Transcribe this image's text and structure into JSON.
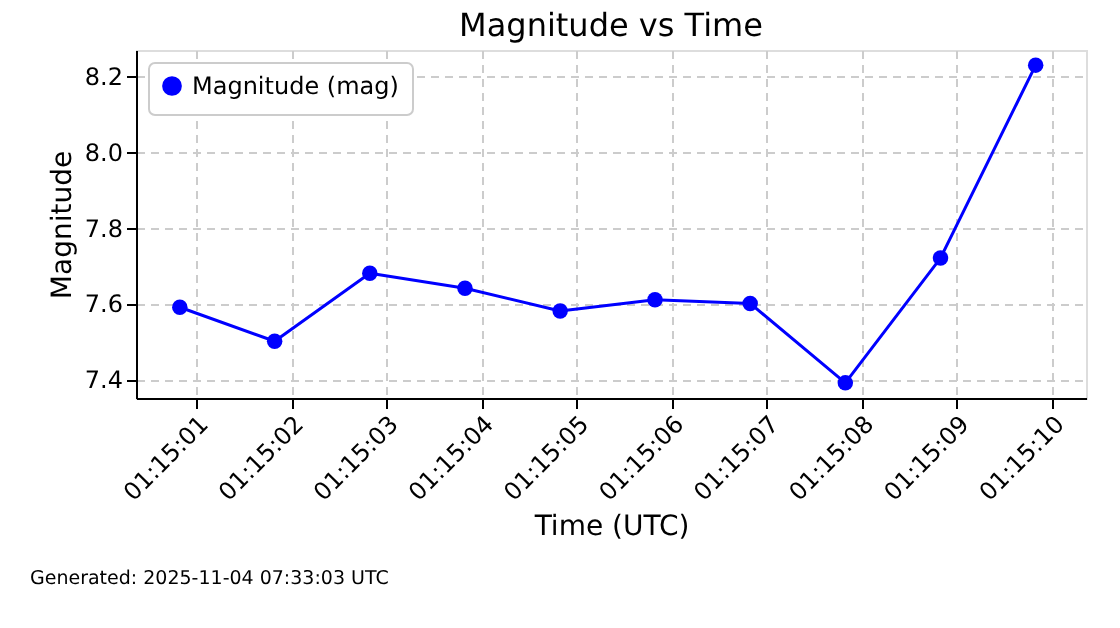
{
  "chart_data": {
    "type": "line",
    "title": "Magnitude vs Time",
    "xlabel": "Time (UTC)",
    "ylabel": "Magnitude",
    "annotations": [
      "Generated: 2025-11-04 07:33:03 UTC"
    ],
    "x": [
      1.250231,
      1.250508,
      1.250786,
      1.251064,
      1.251342,
      1.251619,
      1.251897,
      1.252175,
      1.252453,
      1.252731
    ],
    "series": [
      {
        "name": "Magnitude (mag)",
        "color": "#0000ff",
        "values": [
          7.59,
          7.5,
          7.68,
          7.64,
          7.58,
          7.61,
          7.6,
          7.39,
          7.72,
          8.23
        ]
      }
    ],
    "xlim": [
      1.250103,
      1.252878
    ],
    "xticks": [
      {
        "value": 1.250278,
        "label": "01:15:01"
      },
      {
        "value": 1.250556,
        "label": "01:15:02"
      },
      {
        "value": 1.250833,
        "label": "01:15:03"
      },
      {
        "value": 1.251111,
        "label": "01:15:04"
      },
      {
        "value": 1.251389,
        "label": "01:15:05"
      },
      {
        "value": 1.251667,
        "label": "01:15:06"
      },
      {
        "value": 1.251944,
        "label": "01:15:07"
      },
      {
        "value": 1.252222,
        "label": "01:15:08"
      },
      {
        "value": 1.2525,
        "label": "01:15:09"
      },
      {
        "value": 1.252778,
        "label": "01:15:10"
      }
    ],
    "ylim": [
      7.35,
      8.27
    ],
    "yticks": [
      7.4,
      7.6,
      7.8,
      {
        "value": 8.0,
        "label": "8.0"
      },
      8.2
    ],
    "grid": true,
    "legend": "top left",
    "marker": "circle",
    "line_style": "solid"
  }
}
